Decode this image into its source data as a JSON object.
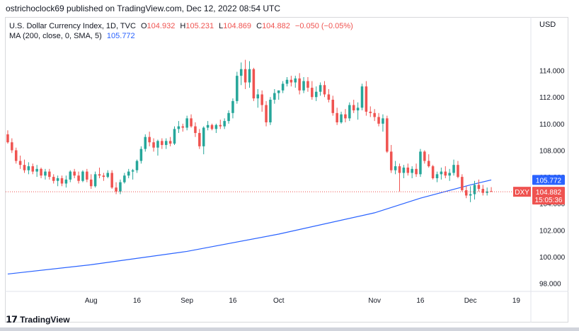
{
  "header": {
    "publisher": "ostrichoclock69 published on TradingView.com, Dec 12, 2022 08:54 UTC"
  },
  "legend": {
    "symbol": "U.S. Dollar Currency Index, 1D, TVC",
    "o_label": "O",
    "o": "104.932",
    "h_label": "H",
    "h": "105.231",
    "l_label": "L",
    "l": "104.869",
    "c_label": "C",
    "c": "104.882",
    "change": "−0.050 (−0.05%)",
    "ma_label": "MA (200, close, 0, SMA, 5)",
    "ma_value": "105.772"
  },
  "currency": "USD",
  "badges": {
    "ma": "105.772",
    "ticker": "DXY",
    "price": "104.882",
    "countdown": "15:05:36"
  },
  "footer": {
    "brand": "TradingView"
  },
  "colors": {
    "up": "#26a69a",
    "down": "#ef5350",
    "ma": "#2962ff",
    "axis_text": "#131722"
  },
  "chart_data": {
    "type": "candlestick",
    "title": "U.S. Dollar Currency Index, 1D, TVC",
    "ylim": [
      97.5,
      116.0
    ],
    "yticks": [
      98.0,
      100.0,
      102.0,
      104.0,
      106.0,
      108.0,
      110.0,
      112.0,
      114.0
    ],
    "ytick_labels": [
      "98.000",
      "100.000",
      "102.000",
      "104.000",
      "106.000",
      "108.000",
      "110.000",
      "112.000",
      "114.000"
    ],
    "xticks": [
      {
        "label": "Aug",
        "index": 20
      },
      {
        "label": "16",
        "index": 31
      },
      {
        "label": "Sep",
        "index": 43
      },
      {
        "label": "16",
        "index": 54
      },
      {
        "label": "Oct",
        "index": 65
      },
      {
        "label": "Nov",
        "index": 88
      },
      {
        "label": "16",
        "index": 99
      },
      {
        "label": "Dec",
        "index": 111
      },
      {
        "label": "19",
        "index": 122
      }
    ],
    "x_count": 126,
    "last_price": 104.882,
    "candles": [
      [
        109.2,
        109.5,
        108.5,
        108.6
      ],
      [
        108.6,
        108.9,
        107.8,
        108.0
      ],
      [
        108.0,
        108.2,
        107.0,
        107.2
      ],
      [
        107.2,
        107.6,
        106.6,
        106.9
      ],
      [
        106.9,
        107.3,
        106.3,
        106.5
      ],
      [
        106.5,
        107.1,
        106.2,
        106.8
      ],
      [
        106.8,
        107.0,
        106.2,
        106.4
      ],
      [
        106.4,
        106.9,
        106.0,
        106.6
      ],
      [
        106.6,
        106.7,
        105.9,
        106.1
      ],
      [
        106.1,
        106.6,
        105.8,
        106.4
      ],
      [
        106.4,
        106.6,
        105.8,
        106.0
      ],
      [
        106.0,
        106.2,
        105.5,
        105.7
      ],
      [
        105.7,
        106.1,
        105.3,
        105.9
      ],
      [
        105.9,
        106.1,
        105.3,
        105.5
      ],
      [
        105.5,
        106.1,
        105.2,
        105.8
      ],
      [
        105.8,
        106.5,
        105.6,
        106.4
      ],
      [
        106.4,
        106.6,
        105.9,
        106.1
      ],
      [
        106.1,
        106.4,
        105.5,
        105.7
      ],
      [
        105.7,
        106.5,
        105.6,
        106.4
      ],
      [
        106.4,
        106.6,
        105.6,
        105.8
      ],
      [
        105.8,
        106.2,
        105.1,
        105.3
      ],
      [
        105.3,
        106.4,
        105.2,
        106.2
      ],
      [
        106.2,
        106.7,
        105.9,
        106.1
      ],
      [
        106.1,
        106.3,
        105.7,
        106.0
      ],
      [
        106.0,
        106.5,
        105.9,
        106.3
      ],
      [
        106.3,
        106.5,
        105.1,
        105.2
      ],
      [
        105.2,
        105.6,
        104.7,
        104.9
      ],
      [
        104.9,
        105.8,
        104.7,
        105.6
      ],
      [
        105.6,
        106.3,
        105.5,
        106.1
      ],
      [
        106.1,
        106.6,
        105.9,
        106.4
      ],
      [
        106.4,
        106.6,
        105.8,
        106.5
      ],
      [
        106.5,
        107.3,
        106.3,
        107.2
      ],
      [
        107.2,
        108.3,
        107.0,
        108.1
      ],
      [
        108.1,
        109.2,
        107.9,
        109.0
      ],
      [
        109.0,
        109.4,
        108.3,
        108.6
      ],
      [
        108.6,
        108.9,
        107.9,
        108.2
      ],
      [
        108.2,
        108.8,
        107.6,
        108.7
      ],
      [
        108.7,
        108.9,
        108.1,
        108.4
      ],
      [
        108.4,
        108.9,
        108.1,
        108.7
      ],
      [
        108.7,
        109.0,
        108.3,
        108.5
      ],
      [
        108.5,
        109.8,
        108.4,
        109.6
      ],
      [
        109.6,
        110.2,
        109.3,
        109.8
      ],
      [
        109.8,
        110.0,
        109.4,
        109.7
      ],
      [
        109.7,
        110.6,
        109.5,
        110.4
      ],
      [
        110.4,
        110.7,
        109.7,
        109.8
      ],
      [
        109.8,
        110.1,
        109.0,
        109.3
      ],
      [
        109.3,
        109.6,
        108.1,
        108.3
      ],
      [
        108.3,
        109.8,
        107.7,
        109.7
      ],
      [
        109.7,
        110.2,
        109.5,
        109.9
      ],
      [
        109.9,
        110.0,
        109.5,
        109.6
      ],
      [
        109.6,
        110.0,
        109.3,
        109.9
      ],
      [
        109.9,
        110.3,
        109.6,
        109.8
      ],
      [
        109.8,
        110.4,
        109.6,
        110.2
      ],
      [
        110.2,
        111.0,
        110.0,
        110.8
      ],
      [
        110.8,
        111.9,
        110.4,
        111.7
      ],
      [
        111.7,
        113.9,
        111.5,
        113.6
      ],
      [
        113.6,
        114.6,
        112.9,
        114.1
      ],
      [
        114.1,
        114.8,
        112.6,
        113.1
      ],
      [
        113.1,
        114.7,
        112.7,
        114.1
      ],
      [
        114.1,
        114.2,
        111.7,
        111.9
      ],
      [
        111.9,
        112.6,
        111.2,
        112.2
      ],
      [
        112.2,
        112.5,
        110.9,
        111.4
      ],
      [
        111.4,
        111.7,
        109.8,
        110.1
      ],
      [
        110.1,
        112.0,
        109.9,
        111.8
      ],
      [
        111.8,
        112.6,
        111.5,
        112.3
      ],
      [
        112.3,
        112.5,
        111.8,
        112.5
      ],
      [
        112.5,
        113.2,
        112.3,
        113.0
      ],
      [
        113.0,
        113.5,
        112.8,
        113.3
      ],
      [
        113.3,
        113.6,
        112.8,
        113.1
      ],
      [
        113.1,
        113.6,
        112.7,
        113.4
      ],
      [
        113.4,
        113.8,
        112.2,
        112.5
      ],
      [
        112.5,
        113.5,
        112.3,
        113.2
      ],
      [
        113.2,
        113.5,
        112.4,
        112.7
      ],
      [
        112.7,
        113.2,
        111.8,
        112.0
      ],
      [
        112.0,
        112.8,
        111.7,
        112.4
      ],
      [
        112.4,
        113.1,
        112.1,
        112.9
      ],
      [
        112.9,
        113.2,
        112.0,
        112.2
      ],
      [
        112.2,
        112.6,
        111.6,
        111.8
      ],
      [
        111.8,
        112.1,
        110.6,
        110.8
      ],
      [
        110.8,
        111.2,
        109.9,
        110.1
      ],
      [
        110.1,
        110.9,
        110.0,
        110.7
      ],
      [
        110.7,
        111.1,
        110.1,
        110.4
      ],
      [
        110.4,
        111.6,
        110.2,
        111.4
      ],
      [
        111.4,
        111.8,
        110.8,
        111.0
      ],
      [
        111.0,
        111.6,
        110.3,
        111.2
      ],
      [
        111.2,
        113.0,
        111.0,
        112.8
      ],
      [
        112.8,
        113.2,
        110.6,
        110.9
      ],
      [
        110.9,
        111.3,
        110.5,
        110.8
      ],
      [
        110.8,
        111.1,
        110.2,
        110.5
      ],
      [
        110.5,
        110.8,
        109.8,
        110.0
      ],
      [
        110.0,
        110.7,
        109.4,
        110.4
      ],
      [
        110.4,
        110.6,
        107.8,
        107.9
      ],
      [
        107.9,
        108.4,
        106.3,
        106.5
      ],
      [
        106.5,
        107.2,
        106.2,
        106.8
      ],
      [
        106.8,
        107.0,
        104.9,
        106.3
      ],
      [
        106.3,
        106.9,
        105.9,
        106.7
      ],
      [
        106.7,
        107.0,
        106.1,
        106.3
      ],
      [
        106.3,
        106.8,
        105.9,
        106.6
      ],
      [
        106.6,
        107.0,
        106.0,
        106.2
      ],
      [
        106.2,
        108.1,
        106.0,
        107.9
      ],
      [
        107.9,
        108.0,
        107.0,
        107.2
      ],
      [
        107.2,
        107.7,
        106.7,
        106.8
      ],
      [
        106.8,
        106.9,
        105.8,
        105.9
      ],
      [
        105.9,
        106.4,
        105.6,
        106.2
      ],
      [
        106.2,
        106.7,
        105.8,
        106.4
      ],
      [
        106.4,
        106.8,
        105.9,
        106.1
      ],
      [
        106.1,
        106.6,
        105.7,
        106.3
      ],
      [
        106.3,
        107.3,
        106.1,
        106.9
      ],
      [
        106.9,
        107.2,
        105.9,
        106.0
      ],
      [
        106.0,
        106.2,
        104.9,
        105.0
      ],
      [
        105.0,
        105.3,
        104.4,
        104.6
      ],
      [
        104.6,
        105.3,
        104.1,
        104.7
      ],
      [
        104.7,
        105.7,
        104.3,
        105.4
      ],
      [
        105.4,
        105.8,
        104.9,
        105.1
      ],
      [
        105.1,
        105.4,
        104.6,
        104.8
      ],
      [
        104.8,
        105.2,
        104.6,
        104.9
      ],
      [
        104.932,
        105.231,
        104.869,
        104.882
      ]
    ],
    "ma_series": {
      "name": "MA (200, close, 0, SMA, 5)",
      "start_index": 0,
      "points": [
        [
          0,
          98.7
        ],
        [
          20,
          99.4
        ],
        [
          43,
          100.4
        ],
        [
          65,
          101.7
        ],
        [
          88,
          103.3
        ],
        [
          99,
          104.4
        ],
        [
          111,
          105.4
        ],
        [
          116,
          105.772
        ]
      ]
    }
  }
}
